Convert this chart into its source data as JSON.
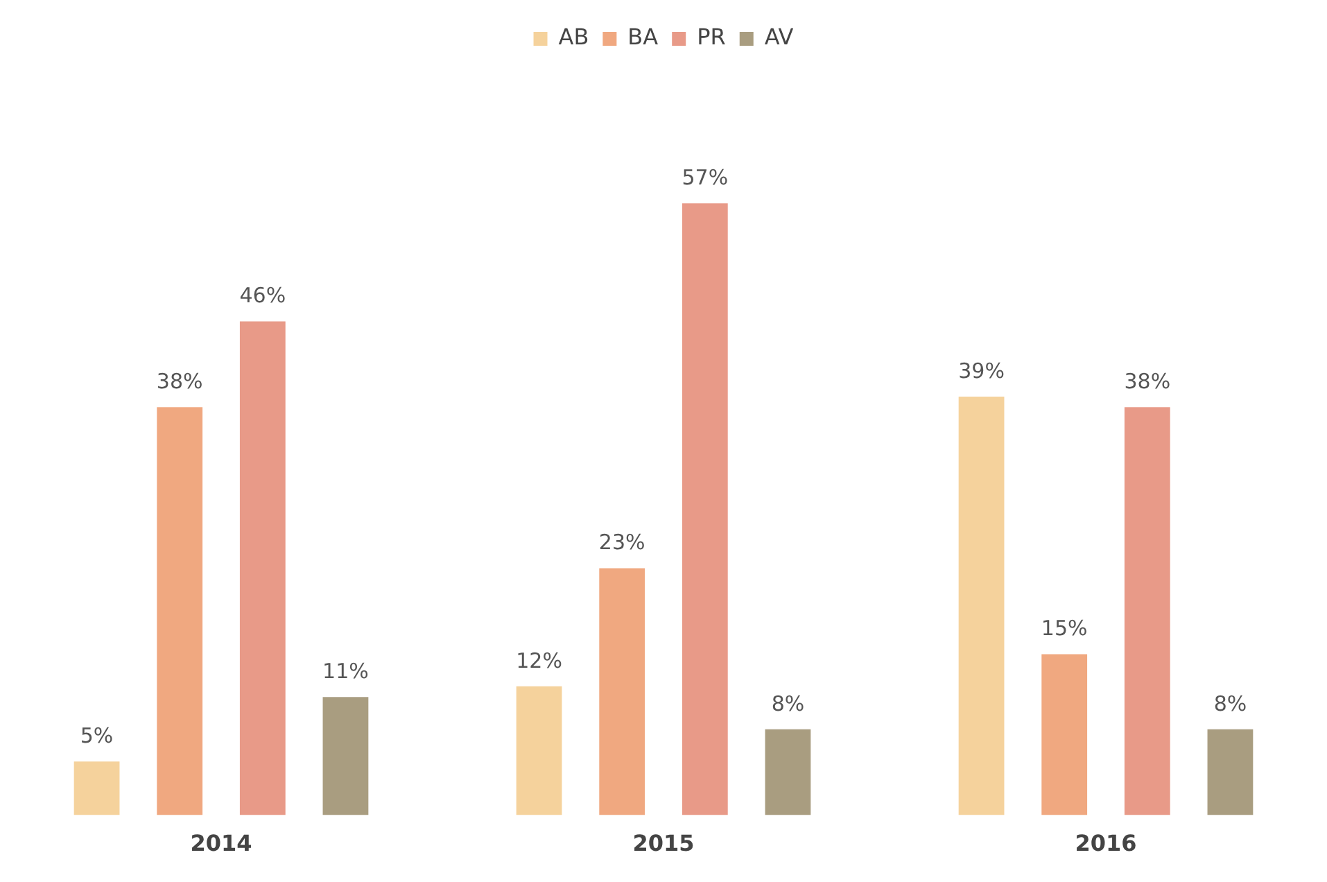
{
  "chart_data": {
    "type": "bar",
    "categories": [
      "2014",
      "2015",
      "2016"
    ],
    "series": [
      {
        "name": "AB",
        "color": "#f5d29c",
        "values": [
          5,
          12,
          39
        ],
        "value_labels": [
          "5%",
          "12%",
          "39%"
        ]
      },
      {
        "name": "BA",
        "color": "#f0a880",
        "values": [
          38,
          23,
          15
        ],
        "value_labels": [
          "38%",
          "23%",
          "15%"
        ]
      },
      {
        "name": "PR",
        "color": "#e89a88",
        "values": [
          46,
          57,
          38
        ],
        "value_labels": [
          "46%",
          "57%",
          "38%"
        ]
      },
      {
        "name": "AV",
        "color": "#a99d80",
        "values": [
          11,
          8,
          8
        ],
        "value_labels": [
          "11%",
          "8%",
          "8%"
        ]
      }
    ],
    "legend": "top"
  }
}
